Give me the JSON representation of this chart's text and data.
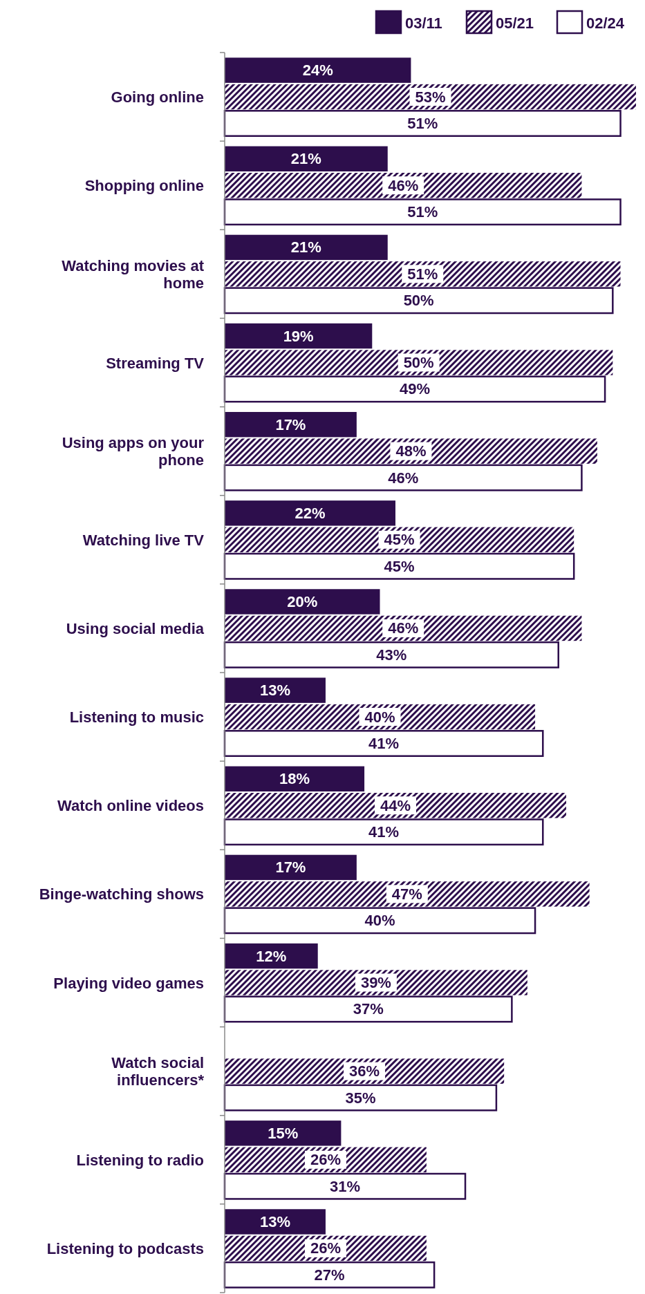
{
  "chart_data": {
    "type": "bar",
    "orientation": "horizontal",
    "legend": "top right",
    "categories": [
      "Going online",
      "Shopping online",
      "Watching movies at home",
      "Streaming TV",
      "Using apps on your phone",
      "Watching live TV",
      "Using social media",
      "Listening to music",
      "Watch online videos",
      "Binge-watching shows",
      "Playing video games",
      "Watch social influencers*",
      "Listening to radio",
      "Listening to podcasts"
    ],
    "series": [
      {
        "name": "03/11",
        "color": "#2d0e4c",
        "values": [
          24,
          21,
          21,
          19,
          17,
          22,
          20,
          13,
          18,
          17,
          12,
          null,
          15,
          13
        ],
        "value_labels": [
          "24%",
          "21%",
          "21%",
          "19%",
          "17%",
          "22%",
          "20%",
          "13%",
          "18%",
          "17%",
          "12%",
          null,
          "15%",
          "13%"
        ]
      },
      {
        "name": "05/21",
        "color": "#2d0e4c",
        "values": [
          53,
          46,
          51,
          50,
          48,
          45,
          46,
          40,
          44,
          47,
          39,
          36,
          26,
          26
        ],
        "value_labels": [
          "53%",
          "46%",
          "51%",
          "50%",
          "48%",
          "45%",
          "46%",
          "40%",
          "44%",
          "47%",
          "39%",
          "36%",
          "26%",
          "26%"
        ]
      },
      {
        "name": "02/24",
        "color": "#ffffff",
        "values": [
          51,
          51,
          50,
          49,
          46,
          45,
          43,
          41,
          41,
          40,
          37,
          35,
          31,
          27
        ],
        "value_labels": [
          "51%",
          "51%",
          "50%",
          "49%",
          "46%",
          "45%",
          "43%",
          "41%",
          "41%",
          "40%",
          "37%",
          "35%",
          "31%",
          "27%"
        ]
      }
    ]
  }
}
